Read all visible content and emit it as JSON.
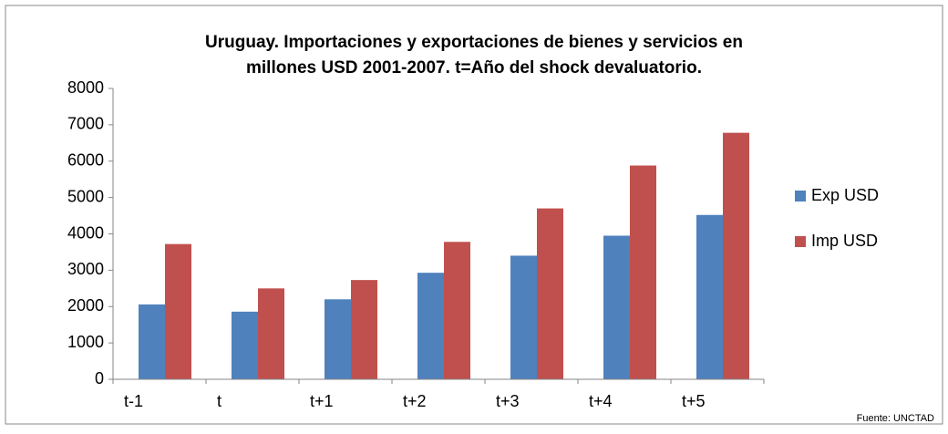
{
  "chart_data": {
    "type": "bar",
    "title": "Uruguay. Importaciones y exportaciones de bienes y servicios en millones USD 2001-2007. t=Año del shock devaluatorio.",
    "categories": [
      "t-1",
      "t",
      "t+1",
      "t+2",
      "t+3",
      "t+4",
      "t+5"
    ],
    "series": [
      {
        "name": "Exp USD",
        "color": "#4f81bd",
        "values": [
          2060,
          1860,
          2200,
          2930,
          3400,
          3950,
          4520
        ]
      },
      {
        "name": "Imp USD",
        "color": "#c0504d",
        "values": [
          3720,
          2500,
          2730,
          3780,
          4700,
          5880,
          6780
        ]
      }
    ],
    "ylim": [
      0,
      8000
    ],
    "yticks": [
      0,
      1000,
      2000,
      3000,
      4000,
      5000,
      6000,
      7000,
      8000
    ],
    "legend": "right",
    "grid": false,
    "note": "Fuente: UNCTAD"
  }
}
